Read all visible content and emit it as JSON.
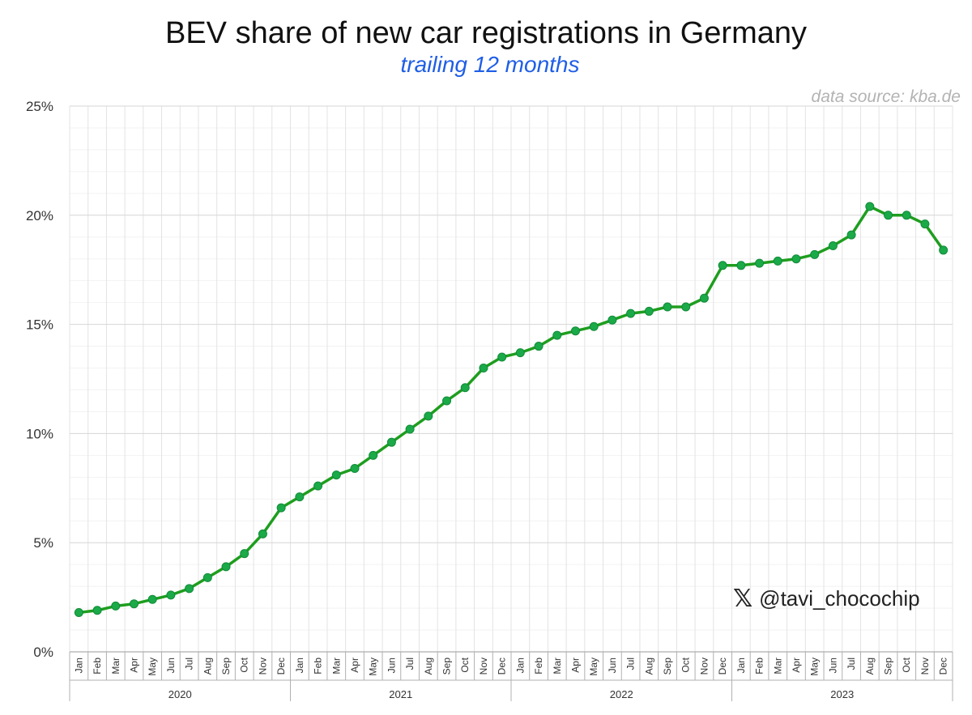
{
  "header": {
    "title": "BEV share of new car registrations in Germany",
    "subtitle": "trailing 12 months",
    "source": "data source: kba.de"
  },
  "watermark": {
    "icon": "x-logo-icon",
    "glyph": "𝕏",
    "handle": "@tavi_chocochip"
  },
  "colors": {
    "line": "#1e9e1e",
    "marker": "#1aaa48",
    "title": "#111111",
    "subtitle": "#1f5ee6",
    "source": "#b3b3b3"
  },
  "chart_data": {
    "type": "line",
    "title": "BEV share of new car registrations in Germany",
    "subtitle": "trailing 12 months",
    "ylim": [
      0,
      25
    ],
    "yticks": [
      "0%",
      "5%",
      "10%",
      "15%",
      "20%",
      "25%"
    ],
    "ytick_values": [
      0,
      5,
      10,
      15,
      20,
      25
    ],
    "grid": true,
    "months": [
      "Jan",
      "Feb",
      "Mar",
      "Apr",
      "May",
      "Jun",
      "Jul",
      "Aug",
      "Sep",
      "Oct",
      "Nov",
      "Dec"
    ],
    "years": [
      "2020",
      "2021",
      "2022",
      "2023"
    ],
    "series": [
      {
        "values": [
          1.8,
          1.9,
          2.1,
          2.2,
          2.4,
          2.6,
          2.9,
          3.4,
          3.9,
          4.5,
          5.4,
          6.6,
          7.1,
          7.6,
          8.1,
          8.4,
          9.0,
          9.6,
          10.2,
          10.8,
          11.5,
          12.1,
          13.0,
          13.5,
          13.7,
          14.0,
          14.5,
          14.7,
          14.9,
          15.2,
          15.5,
          15.6,
          15.8,
          15.8,
          16.2,
          17.7,
          17.7,
          17.8,
          17.9,
          18.0,
          18.2,
          18.6,
          19.1,
          20.4,
          20.0,
          20.0,
          19.6,
          18.4
        ]
      }
    ]
  }
}
